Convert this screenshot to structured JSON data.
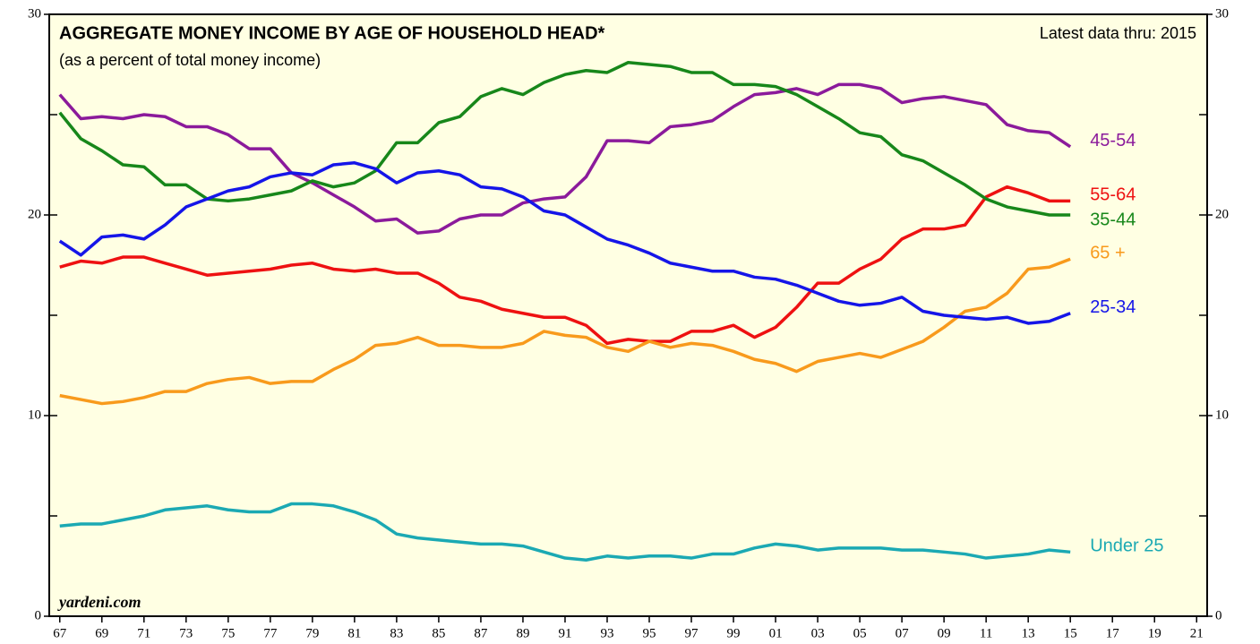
{
  "chart_data": {
    "type": "line",
    "title": "AGGREGATE MONEY INCOME BY AGE OF HOUSEHOLD HEAD*",
    "subtitle": "(as a percent of total money income)",
    "note": "Latest data thru: 2015",
    "source": "yardeni.com",
    "background": "#ffffe3",
    "x": [
      1967,
      1968,
      1969,
      1970,
      1971,
      1972,
      1973,
      1974,
      1975,
      1976,
      1977,
      1978,
      1979,
      1980,
      1981,
      1982,
      1983,
      1984,
      1985,
      1986,
      1987,
      1988,
      1989,
      1990,
      1991,
      1992,
      1993,
      1994,
      1995,
      1996,
      1997,
      1998,
      1999,
      2000,
      2001,
      2002,
      2003,
      2004,
      2005,
      2006,
      2007,
      2008,
      2009,
      2010,
      2011,
      2012,
      2013,
      2014,
      2015
    ],
    "series": [
      {
        "name": "45-54",
        "color": "#8b1a9b",
        "values": [
          26.0,
          24.8,
          24.9,
          24.8,
          25.0,
          24.9,
          24.4,
          24.4,
          24.0,
          23.3,
          23.3,
          22.1,
          21.6,
          21.0,
          20.4,
          19.7,
          19.8,
          19.1,
          19.2,
          19.8,
          20.0,
          20.0,
          20.6,
          20.8,
          20.9,
          21.9,
          23.7,
          23.7,
          23.6,
          24.4,
          24.5,
          24.7,
          25.4,
          26.0,
          26.1,
          26.3,
          26.0,
          26.5,
          26.5,
          26.3,
          25.6,
          25.8,
          25.9,
          25.7,
          25.5,
          24.5,
          24.2,
          24.1,
          23.4
        ]
      },
      {
        "name": "55-64",
        "color": "#ee1111",
        "values": [
          17.4,
          17.7,
          17.6,
          17.9,
          17.9,
          17.6,
          17.3,
          17.0,
          17.1,
          17.2,
          17.3,
          17.5,
          17.6,
          17.3,
          17.2,
          17.3,
          17.1,
          17.1,
          16.6,
          15.9,
          15.7,
          15.3,
          15.1,
          14.9,
          14.9,
          14.5,
          13.6,
          13.8,
          13.7,
          13.7,
          14.2,
          14.2,
          14.5,
          13.9,
          14.4,
          15.4,
          16.6,
          16.6,
          17.3,
          17.8,
          18.8,
          19.3,
          19.3,
          19.5,
          20.9,
          21.4,
          21.1,
          20.7,
          20.7
        ]
      },
      {
        "name": "35-44",
        "color": "#17871a",
        "values": [
          25.1,
          23.8,
          23.2,
          22.5,
          22.4,
          21.5,
          21.5,
          20.8,
          20.7,
          20.8,
          21.0,
          21.2,
          21.7,
          21.4,
          21.6,
          22.2,
          23.6,
          23.6,
          24.6,
          24.9,
          25.9,
          26.3,
          26.0,
          26.6,
          27.0,
          27.2,
          27.1,
          27.6,
          27.5,
          27.4,
          27.1,
          27.1,
          26.5,
          26.5,
          26.4,
          26.0,
          25.4,
          24.8,
          24.1,
          23.9,
          23.0,
          22.7,
          22.1,
          21.5,
          20.8,
          20.4,
          20.2,
          20.0,
          20.0
        ]
      },
      {
        "name": "65 +",
        "color": "#f89a1c",
        "values": [
          11.0,
          10.8,
          10.6,
          10.7,
          10.9,
          11.2,
          11.2,
          11.6,
          11.8,
          11.9,
          11.6,
          11.7,
          11.7,
          12.3,
          12.8,
          13.5,
          13.6,
          13.9,
          13.5,
          13.5,
          13.4,
          13.4,
          13.6,
          14.2,
          14.0,
          13.9,
          13.4,
          13.2,
          13.7,
          13.4,
          13.6,
          13.5,
          13.2,
          12.8,
          12.6,
          12.2,
          12.7,
          12.9,
          13.1,
          12.9,
          13.3,
          13.7,
          14.4,
          15.2,
          15.4,
          16.1,
          17.3,
          17.4,
          17.8
        ]
      },
      {
        "name": "25-34",
        "color": "#1515e8",
        "values": [
          18.7,
          18.0,
          18.9,
          19.0,
          18.8,
          19.5,
          20.4,
          20.8,
          21.2,
          21.4,
          21.9,
          22.1,
          22.0,
          22.5,
          22.6,
          22.3,
          21.6,
          22.1,
          22.2,
          22.0,
          21.4,
          21.3,
          20.9,
          20.2,
          20.0,
          19.4,
          18.8,
          18.5,
          18.1,
          17.6,
          17.4,
          17.2,
          17.2,
          16.9,
          16.8,
          16.5,
          16.1,
          15.7,
          15.5,
          15.6,
          15.9,
          15.2,
          15.0,
          14.9,
          14.8,
          14.9,
          14.6,
          14.7,
          15.1
        ]
      },
      {
        "name": "Under 25",
        "color": "#1ba9b3",
        "values": [
          4.5,
          4.6,
          4.6,
          4.8,
          5.0,
          5.3,
          5.4,
          5.5,
          5.3,
          5.2,
          5.2,
          5.6,
          5.6,
          5.5,
          5.2,
          4.8,
          4.1,
          3.9,
          3.8,
          3.7,
          3.6,
          3.6,
          3.5,
          3.2,
          2.9,
          2.8,
          3.0,
          2.9,
          3.0,
          3.0,
          2.9,
          3.1,
          3.1,
          3.4,
          3.6,
          3.5,
          3.3,
          3.4,
          3.4,
          3.4,
          3.3,
          3.3,
          3.2,
          3.1,
          2.9,
          3.0,
          3.1,
          3.3,
          3.2
        ]
      }
    ],
    "xlim": [
      1966.5,
      2021.5
    ],
    "xticks": [
      {
        "value": 1967,
        "label": "67"
      },
      {
        "value": 1969,
        "label": "69"
      },
      {
        "value": 1971,
        "label": "71"
      },
      {
        "value": 1973,
        "label": "73"
      },
      {
        "value": 1975,
        "label": "75"
      },
      {
        "value": 1977,
        "label": "77"
      },
      {
        "value": 1979,
        "label": "79"
      },
      {
        "value": 1981,
        "label": "81"
      },
      {
        "value": 1983,
        "label": "83"
      },
      {
        "value": 1985,
        "label": "85"
      },
      {
        "value": 1987,
        "label": "87"
      },
      {
        "value": 1989,
        "label": "89"
      },
      {
        "value": 1991,
        "label": "91"
      },
      {
        "value": 1993,
        "label": "93"
      },
      {
        "value": 1995,
        "label": "95"
      },
      {
        "value": 1997,
        "label": "97"
      },
      {
        "value": 1999,
        "label": "99"
      },
      {
        "value": 2001,
        "label": "01"
      },
      {
        "value": 2003,
        "label": "03"
      },
      {
        "value": 2005,
        "label": "05"
      },
      {
        "value": 2007,
        "label": "07"
      },
      {
        "value": 2009,
        "label": "09"
      },
      {
        "value": 2011,
        "label": "11"
      },
      {
        "value": 2013,
        "label": "13"
      },
      {
        "value": 2015,
        "label": "15"
      },
      {
        "value": 2017,
        "label": "17"
      },
      {
        "value": 2019,
        "label": "19"
      },
      {
        "value": 2021,
        "label": "21"
      }
    ],
    "ylim": [
      0,
      30
    ],
    "yticks": [
      0,
      10,
      20,
      30
    ],
    "yminorticks": [
      5,
      15,
      25
    ],
    "grid": false
  }
}
